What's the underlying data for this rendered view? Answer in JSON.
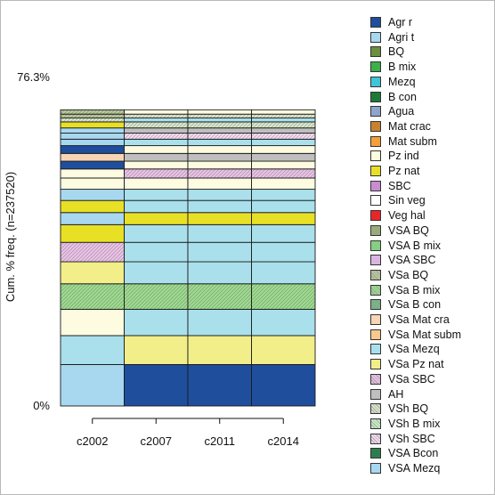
{
  "chart_data": {
    "type": "bar",
    "stacked": true,
    "ylabel": "Cum. % freq. (n=237520)",
    "ytick_labels": [
      "0%",
      "76.3%"
    ],
    "ylim": [
      0,
      76.3
    ],
    "categories": [
      "c2002",
      "c2007",
      "c2011",
      "c2014"
    ],
    "legend_position": "right",
    "legend": [
      {
        "name": "Agr r",
        "color": "#1f4e9c",
        "pattern": "solid"
      },
      {
        "name": "Agri t",
        "color": "#a8d8f0",
        "pattern": "solid"
      },
      {
        "name": "BQ",
        "color": "#6b8f3e",
        "pattern": "solid"
      },
      {
        "name": "B mix",
        "color": "#3cb04a",
        "pattern": "solid"
      },
      {
        "name": "Mezq",
        "color": "#40c4d8",
        "pattern": "solid"
      },
      {
        "name": "B con",
        "color": "#1b7a36",
        "pattern": "solid"
      },
      {
        "name": "Agua",
        "color": "#8aa4e0",
        "pattern": "vlines"
      },
      {
        "name": "Mat crac",
        "color": "#c8822e",
        "pattern": "solid"
      },
      {
        "name": "Mat subm",
        "color": "#f3a03a",
        "pattern": "solid"
      },
      {
        "name": "Pz ind",
        "color": "#fdfbe0",
        "pattern": "solid"
      },
      {
        "name": "Pz nat",
        "color": "#e8e025",
        "pattern": "solid"
      },
      {
        "name": "SBC",
        "color": "#c98bd2",
        "pattern": "solid"
      },
      {
        "name": "Sin veg",
        "color": "#ffffff",
        "pattern": "solid"
      },
      {
        "name": "Veg hal",
        "color": "#e8262a",
        "pattern": "solid"
      },
      {
        "name": "VSA BQ",
        "color": "#98ab7a",
        "pattern": "solid"
      },
      {
        "name": "VSA B mix",
        "color": "#86cf82",
        "pattern": "solid"
      },
      {
        "name": "VSA SBC",
        "color": "#d9b5e0",
        "pattern": "solid"
      },
      {
        "name": "VSa BQ",
        "color": "#b6c79a",
        "pattern": "diag"
      },
      {
        "name": "VSa B mix",
        "color": "#9cd98e",
        "pattern": "diag"
      },
      {
        "name": "VSa B con",
        "color": "#74b984",
        "pattern": "diag"
      },
      {
        "name": "VSa Mat cra",
        "color": "#f6d6b4",
        "pattern": "solid"
      },
      {
        "name": "VSa Mat subm",
        "color": "#f9c98c",
        "pattern": "solid"
      },
      {
        "name": "VSa Mezq",
        "color": "#a9e0ec",
        "pattern": "solid"
      },
      {
        "name": "VSa Pz nat",
        "color": "#f2ee8a",
        "pattern": "solid"
      },
      {
        "name": "VSa SBC",
        "color": "#e7c0e4",
        "pattern": "diag"
      },
      {
        "name": "AH",
        "color": "#bfbfbf",
        "pattern": "solid"
      },
      {
        "name": "VSh BQ",
        "color": "#d7e3c8",
        "pattern": "diag"
      },
      {
        "name": "VSh B mix",
        "color": "#c7ebc3",
        "pattern": "diag"
      },
      {
        "name": "VSh SBC",
        "color": "#f2d8ee",
        "pattern": "diag"
      },
      {
        "name": "VSA Bcon",
        "color": "#2e7d4f",
        "pattern": "solid"
      },
      {
        "name": "VSA Mezq",
        "color": "#a8d8f0",
        "pattern": "solid"
      }
    ],
    "stacks": [
      {
        "category": "c2002",
        "segments": [
          {
            "class": "VSA Mezq",
            "value": 9.6
          },
          {
            "class": "VSa Mezq",
            "value": 6.7
          },
          {
            "class": "Pz ind",
            "value": 6.1
          },
          {
            "class": "VSa B mix",
            "value": 5.9
          },
          {
            "class": "VSa Pz nat",
            "value": 5.1
          },
          {
            "class": "VSa SBC",
            "value": 4.5
          },
          {
            "class": "Pz nat",
            "value": 4.1
          },
          {
            "class": "Agri t",
            "value": 2.8
          },
          {
            "class": "Pz nat",
            "value": 2.8
          },
          {
            "class": "Agri t",
            "value": 2.6
          },
          {
            "class": "Pz ind",
            "value": 2.6
          },
          {
            "class": "Pz ind",
            "value": 2.1
          },
          {
            "class": "Agr r",
            "value": 1.8
          },
          {
            "class": "VSa Mat cra",
            "value": 1.8
          },
          {
            "class": "Agr r",
            "value": 1.8
          },
          {
            "class": "Agri t",
            "value": 1.5
          },
          {
            "class": "Agri t",
            "value": 1.4
          },
          {
            "class": "Agri t",
            "value": 1.2
          },
          {
            "class": "Pz nat",
            "value": 1.4
          },
          {
            "class": "VSh BQ",
            "value": 0.9
          },
          {
            "class": "VSa BQ",
            "value": 0.9
          },
          {
            "class": "VSa BQ",
            "value": 1.0
          }
        ]
      },
      {
        "category": "c2007",
        "segments": [
          {
            "class": "Agr r",
            "value": 9.6
          },
          {
            "class": "VSa Pz nat",
            "value": 6.7
          },
          {
            "class": "VSa Mezq",
            "value": 6.1
          },
          {
            "class": "VSa B mix",
            "value": 5.9
          },
          {
            "class": "VSa Mezq",
            "value": 5.1
          },
          {
            "class": "VSa Mezq",
            "value": 4.5
          },
          {
            "class": "VSa Mezq",
            "value": 4.1
          },
          {
            "class": "Pz nat",
            "value": 2.8
          },
          {
            "class": "VSa Mezq",
            "value": 2.8
          },
          {
            "class": "VSa Mezq",
            "value": 2.6
          },
          {
            "class": "Pz ind",
            "value": 2.6
          },
          {
            "class": "VSa SBC",
            "value": 2.1
          },
          {
            "class": "Pz ind",
            "value": 1.8
          },
          {
            "class": "AH",
            "value": 1.8
          },
          {
            "class": "Pz ind",
            "value": 1.8
          },
          {
            "class": "VSa Mezq",
            "value": 1.5
          },
          {
            "class": "VSh SBC",
            "value": 1.4
          },
          {
            "class": "AH",
            "value": 1.2
          },
          {
            "class": "VSh BQ",
            "value": 1.4
          },
          {
            "class": "VSa Mezq",
            "value": 0.9
          },
          {
            "class": "VSh BQ",
            "value": 0.9
          },
          {
            "class": "Pz ind",
            "value": 1.0
          }
        ]
      },
      {
        "category": "c2011",
        "segments": [
          {
            "class": "Agr r",
            "value": 9.6
          },
          {
            "class": "VSa Pz nat",
            "value": 6.7
          },
          {
            "class": "VSa Mezq",
            "value": 6.1
          },
          {
            "class": "VSa B mix",
            "value": 5.9
          },
          {
            "class": "VSa Mezq",
            "value": 5.1
          },
          {
            "class": "VSa Mezq",
            "value": 4.5
          },
          {
            "class": "VSa Mezq",
            "value": 4.1
          },
          {
            "class": "Pz nat",
            "value": 2.8
          },
          {
            "class": "VSa Mezq",
            "value": 2.8
          },
          {
            "class": "VSa Mezq",
            "value": 2.6
          },
          {
            "class": "Pz ind",
            "value": 2.6
          },
          {
            "class": "VSa SBC",
            "value": 2.1
          },
          {
            "class": "Pz ind",
            "value": 1.8
          },
          {
            "class": "AH",
            "value": 1.8
          },
          {
            "class": "Pz ind",
            "value": 1.8
          },
          {
            "class": "VSa Mezq",
            "value": 1.5
          },
          {
            "class": "VSh SBC",
            "value": 1.4
          },
          {
            "class": "AH",
            "value": 1.2
          },
          {
            "class": "VSh BQ",
            "value": 1.4
          },
          {
            "class": "VSa Mezq",
            "value": 0.9
          },
          {
            "class": "VSh BQ",
            "value": 0.9
          },
          {
            "class": "Pz ind",
            "value": 1.0
          }
        ]
      },
      {
        "category": "c2014",
        "segments": [
          {
            "class": "Agr r",
            "value": 9.6
          },
          {
            "class": "VSa Pz nat",
            "value": 6.7
          },
          {
            "class": "VSa Mezq",
            "value": 6.1
          },
          {
            "class": "VSa B mix",
            "value": 5.9
          },
          {
            "class": "VSa Mezq",
            "value": 5.1
          },
          {
            "class": "VSa Mezq",
            "value": 4.5
          },
          {
            "class": "VSa Mezq",
            "value": 4.1
          },
          {
            "class": "Pz nat",
            "value": 2.8
          },
          {
            "class": "VSa Mezq",
            "value": 2.8
          },
          {
            "class": "VSa Mezq",
            "value": 2.6
          },
          {
            "class": "Pz ind",
            "value": 2.6
          },
          {
            "class": "VSa SBC",
            "value": 2.1
          },
          {
            "class": "Pz ind",
            "value": 1.8
          },
          {
            "class": "AH",
            "value": 1.8
          },
          {
            "class": "Pz ind",
            "value": 1.8
          },
          {
            "class": "VSa Mezq",
            "value": 1.5
          },
          {
            "class": "VSh SBC",
            "value": 1.4
          },
          {
            "class": "AH",
            "value": 1.2
          },
          {
            "class": "VSh BQ",
            "value": 1.4
          },
          {
            "class": "VSa Mezq",
            "value": 0.9
          },
          {
            "class": "VSh BQ",
            "value": 0.9
          },
          {
            "class": "Pz ind",
            "value": 1.0
          }
        ]
      }
    ]
  }
}
